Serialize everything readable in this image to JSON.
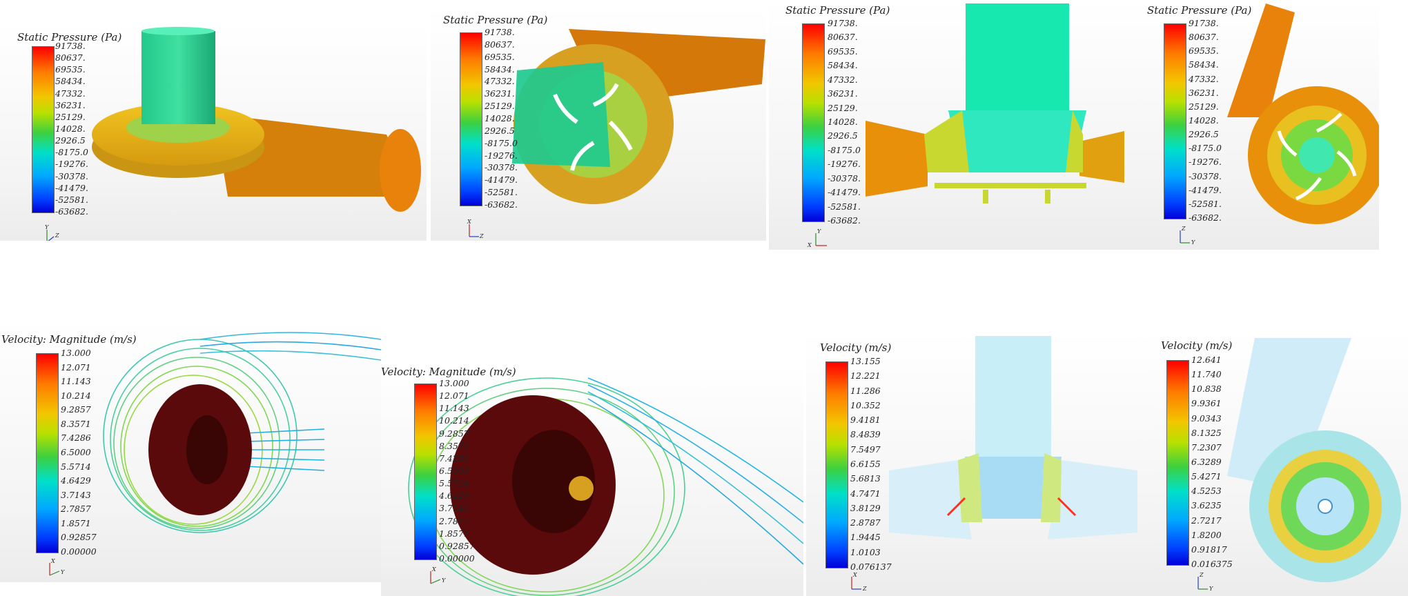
{
  "pressure": {
    "title": "Static Pressure (Pa)",
    "ticks": [
      "91738.",
      "80637.",
      "69535.",
      "58434.",
      "47332.",
      "36231.",
      "25129.",
      "14028.",
      "2926.5",
      "-8175.0",
      "-19276.",
      "-30378.",
      "-41479.",
      "-52581.",
      "-63682."
    ]
  },
  "velocity_streamline": {
    "title": "Velocity: Magnitude (m/s)",
    "ticks": [
      "13.000",
      "12.071",
      "11.143",
      "10.214",
      "9.2857",
      "8.3571",
      "7.4286",
      "6.5000",
      "5.5714",
      "4.6429",
      "3.7143",
      "2.7857",
      "1.8571",
      "0.92857",
      "0.00000"
    ]
  },
  "velocity_section": {
    "title": "Velocity (m/s)",
    "ticks": [
      "13.155",
      "12.221",
      "11.286",
      "10.352",
      "9.4181",
      "8.4839",
      "7.5497",
      "6.6155",
      "5.6813",
      "4.7471",
      "3.8129",
      "2.8787",
      "1.9445",
      "1.0103",
      "0.076137"
    ]
  },
  "velocity_plan": {
    "title": "Velocity (m/s)",
    "ticks": [
      "12.641",
      "11.740",
      "10.838",
      "9.9361",
      "9.0343",
      "8.1325",
      "7.2307",
      "6.3289",
      "5.4271",
      "4.5253",
      "3.6235",
      "2.7217",
      "1.8200",
      "0.91817",
      "0.016375"
    ]
  },
  "axis_labels": {
    "x": "X",
    "y": "Y",
    "z": "Z"
  },
  "colors": {
    "accent_red": "#ff0000",
    "accent_blue": "#0000d8",
    "impeller": "#5a0a0a",
    "housing_orange": "#e8820a"
  }
}
